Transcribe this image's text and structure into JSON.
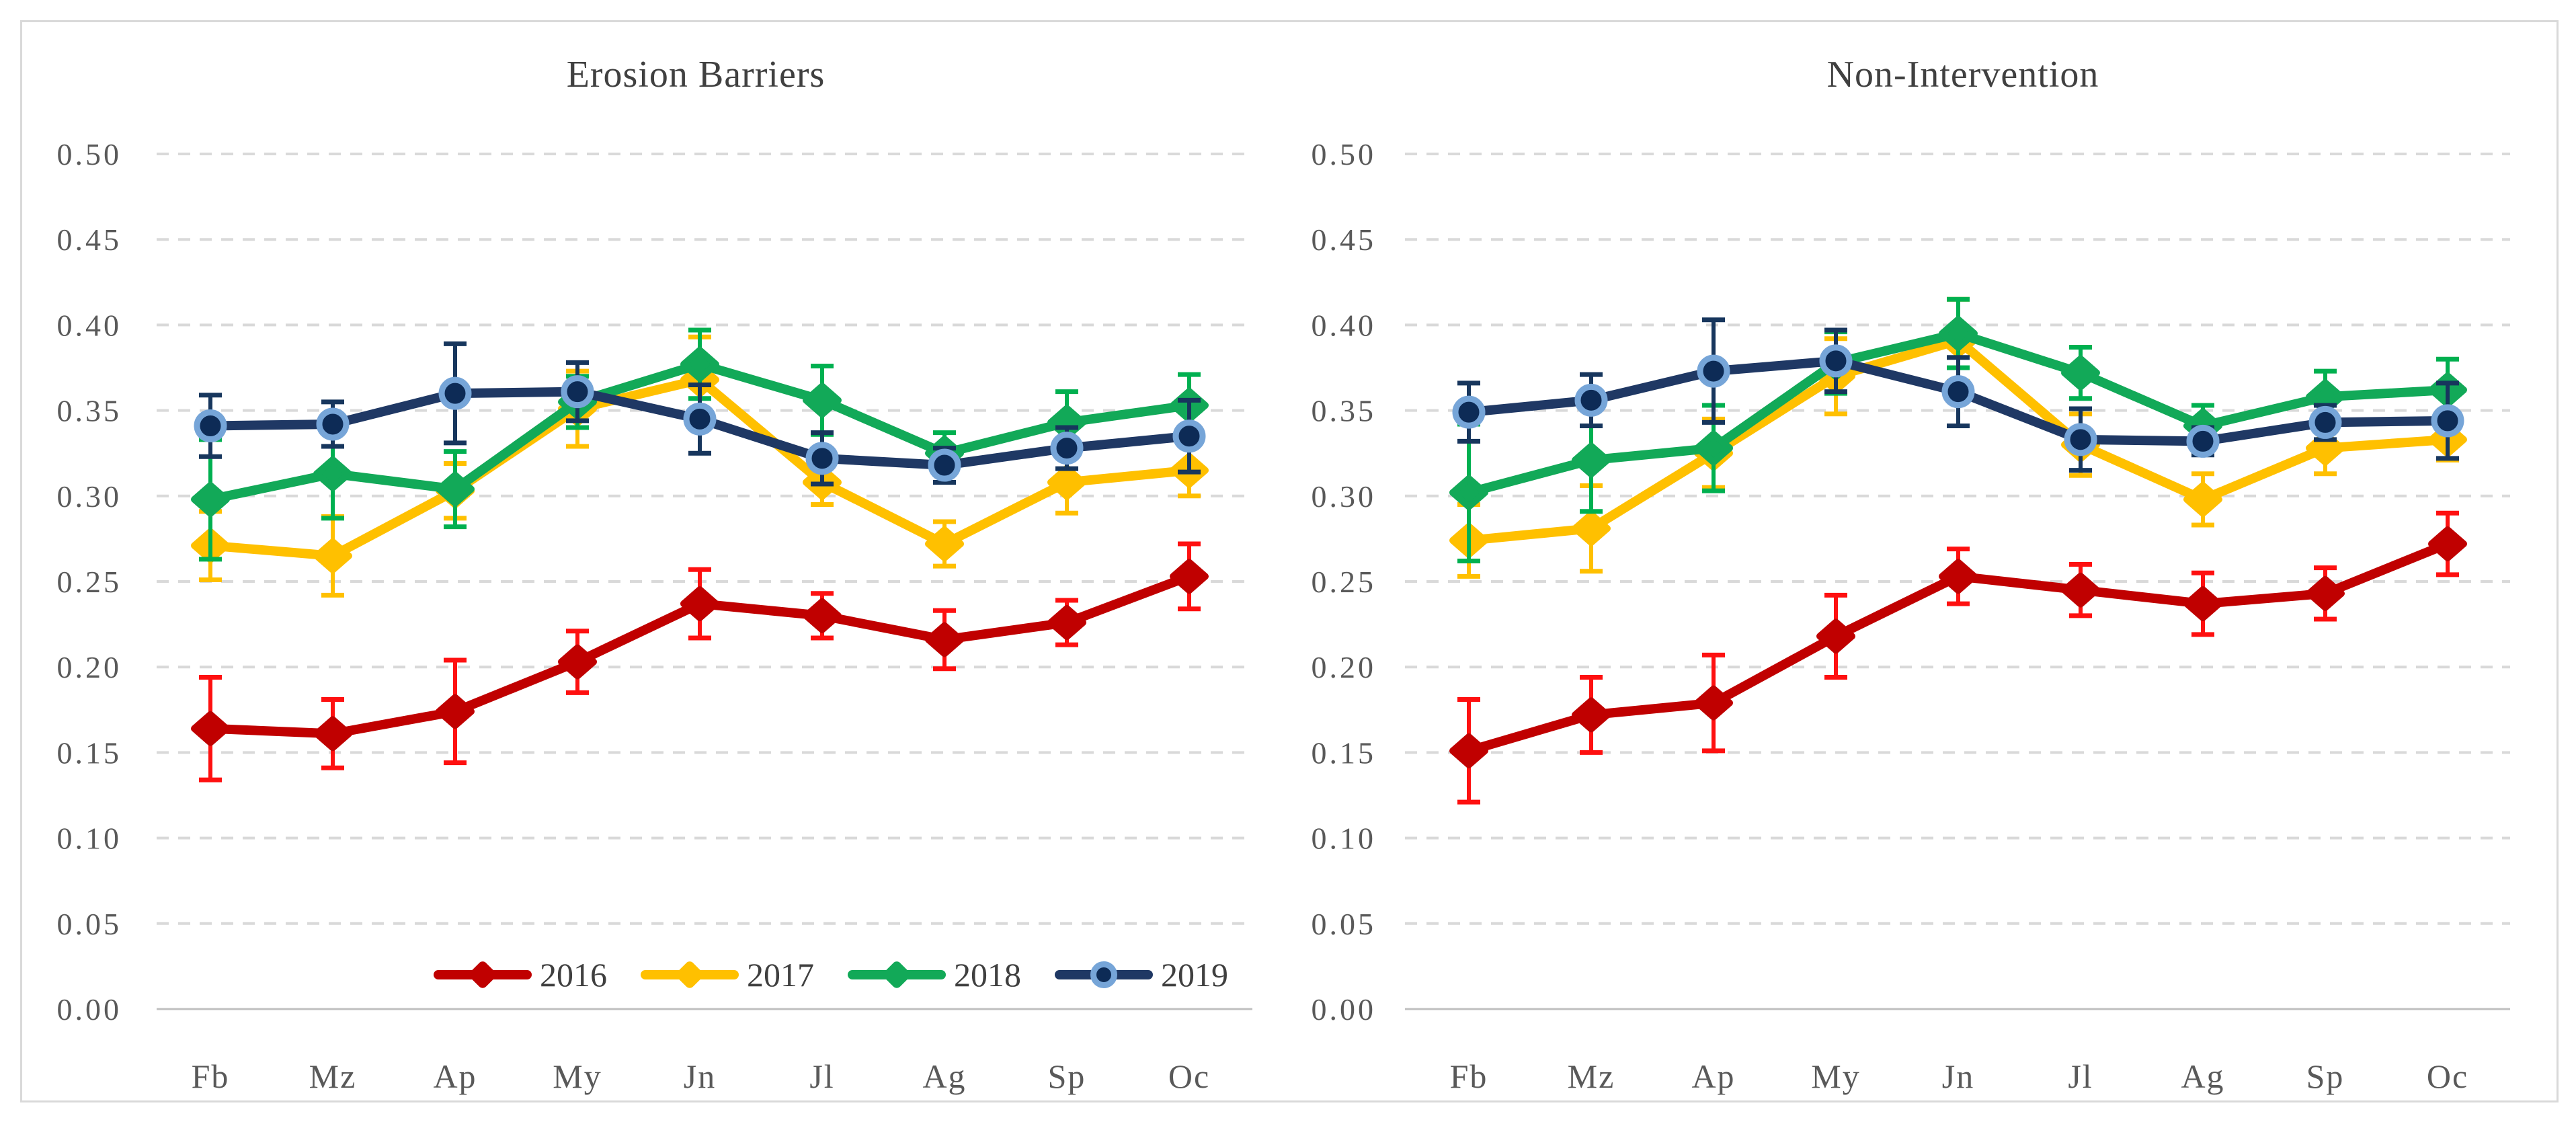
{
  "figure": {
    "background": "#FFFFFF",
    "panel_border_color": "#D9D9D9",
    "grid_color": "#D9D9D9",
    "zero_axis_color": "#BFBFBF",
    "title_color": "#404040",
    "tick_label_color": "#595959",
    "legend_text_color": "#3F3F3F"
  },
  "axis": {
    "y_tick_labels": [
      "0.50",
      "0.45",
      "0.40",
      "0.35",
      "0.30",
      "0.25",
      "0.20",
      "0.15",
      "0.10",
      "0.05",
      "0.00"
    ],
    "y_max": 0.5,
    "y_step": 0.05,
    "ylim": [
      0,
      0.5
    ]
  },
  "legend": {
    "items": [
      {
        "label": "2016",
        "color": "#C00000",
        "marker": "diamond"
      },
      {
        "label": "2017",
        "color": "#FFC000",
        "marker": "diamond"
      },
      {
        "label": "2018",
        "color": "#12A958",
        "marker": "diamond"
      },
      {
        "label": "2019",
        "color": "#1F3864",
        "marker": "circle",
        "marker_fill": "#0D2B56",
        "marker_ring": "#76A5D8"
      }
    ]
  },
  "chart_data": [
    {
      "type": "line",
      "title": "Erosion Barriers",
      "categories": [
        "Fb",
        "Mz",
        "Ap",
        "My",
        "Jn",
        "Jl",
        "Ag",
        "Sp",
        "Oc"
      ],
      "ylim": [
        0,
        0.5
      ],
      "grid": "dashed-horizontal",
      "legend_position": "inside-bottom",
      "series": [
        {
          "name": "2016",
          "color": "#C00000",
          "error_color": "#FE1010",
          "marker": "diamond",
          "values": [
            0.164,
            0.161,
            0.174,
            0.203,
            0.237,
            0.23,
            0.216,
            0.226,
            0.253
          ],
          "errors": [
            0.03,
            0.02,
            0.03,
            0.018,
            0.02,
            0.013,
            0.017,
            0.013,
            0.019
          ]
        },
        {
          "name": "2017",
          "color": "#FFC000",
          "error_color": "#FFC000",
          "marker": "diamond",
          "values": [
            0.271,
            0.265,
            0.303,
            0.351,
            0.368,
            0.308,
            0.272,
            0.308,
            0.315
          ],
          "errors": [
            0.02,
            0.023,
            0.016,
            0.022,
            0.025,
            0.013,
            0.013,
            0.018,
            0.015
          ]
        },
        {
          "name": "2018",
          "color": "#12A958",
          "error_color": "#00B050",
          "marker": "diamond",
          "values": [
            0.298,
            0.313,
            0.304,
            0.355,
            0.377,
            0.356,
            0.325,
            0.343,
            0.353
          ],
          "errors": [
            0.035,
            0.026,
            0.022,
            0.015,
            0.02,
            0.02,
            0.012,
            0.018,
            0.018
          ]
        },
        {
          "name": "2019",
          "color": "#1F3864",
          "error_color": "#17365D",
          "marker": "circle",
          "marker_fill": "#0D2B56",
          "marker_ring": "#76A5D8",
          "values": [
            0.341,
            0.342,
            0.36,
            0.361,
            0.345,
            0.322,
            0.318,
            0.328,
            0.335
          ],
          "errors": [
            0.018,
            0.013,
            0.029,
            0.017,
            0.02,
            0.015,
            0.01,
            0.012,
            0.021
          ]
        }
      ]
    },
    {
      "type": "line",
      "title": "Non-Intervention",
      "categories": [
        "Fb",
        "Mz",
        "Ap",
        "My",
        "Jn",
        "Jl",
        "Ag",
        "Sp",
        "Oc"
      ],
      "ylim": [
        0,
        0.5
      ],
      "grid": "dashed-horizontal",
      "legend_position": "none",
      "series": [
        {
          "name": "2016",
          "color": "#C00000",
          "error_color": "#FE1010",
          "marker": "diamond",
          "values": [
            0.151,
            0.172,
            0.179,
            0.218,
            0.253,
            0.245,
            0.237,
            0.243,
            0.272
          ],
          "errors": [
            0.03,
            0.022,
            0.028,
            0.024,
            0.016,
            0.015,
            0.018,
            0.015,
            0.018
          ]
        },
        {
          "name": "2017",
          "color": "#FFC000",
          "error_color": "#FFC000",
          "marker": "diamond",
          "values": [
            0.274,
            0.281,
            0.325,
            0.37,
            0.391,
            0.33,
            0.298,
            0.328,
            0.333
          ],
          "errors": [
            0.021,
            0.025,
            0.02,
            0.022,
            0.024,
            0.018,
            0.015,
            0.015,
            0.012
          ]
        },
        {
          "name": "2018",
          "color": "#12A958",
          "error_color": "#00B050",
          "marker": "diamond",
          "values": [
            0.302,
            0.321,
            0.328,
            0.378,
            0.395,
            0.372,
            0.341,
            0.358,
            0.362
          ],
          "errors": [
            0.04,
            0.03,
            0.025,
            0.018,
            0.02,
            0.015,
            0.012,
            0.015,
            0.018
          ]
        },
        {
          "name": "2019",
          "color": "#1F3864",
          "error_color": "#17365D",
          "marker": "circle",
          "marker_fill": "#0D2B56",
          "marker_ring": "#76A5D8",
          "values": [
            0.349,
            0.356,
            0.373,
            0.379,
            0.361,
            0.333,
            0.332,
            0.343,
            0.344
          ],
          "errors": [
            0.017,
            0.015,
            0.03,
            0.018,
            0.02,
            0.018,
            0.008,
            0.01,
            0.022
          ]
        }
      ]
    }
  ]
}
